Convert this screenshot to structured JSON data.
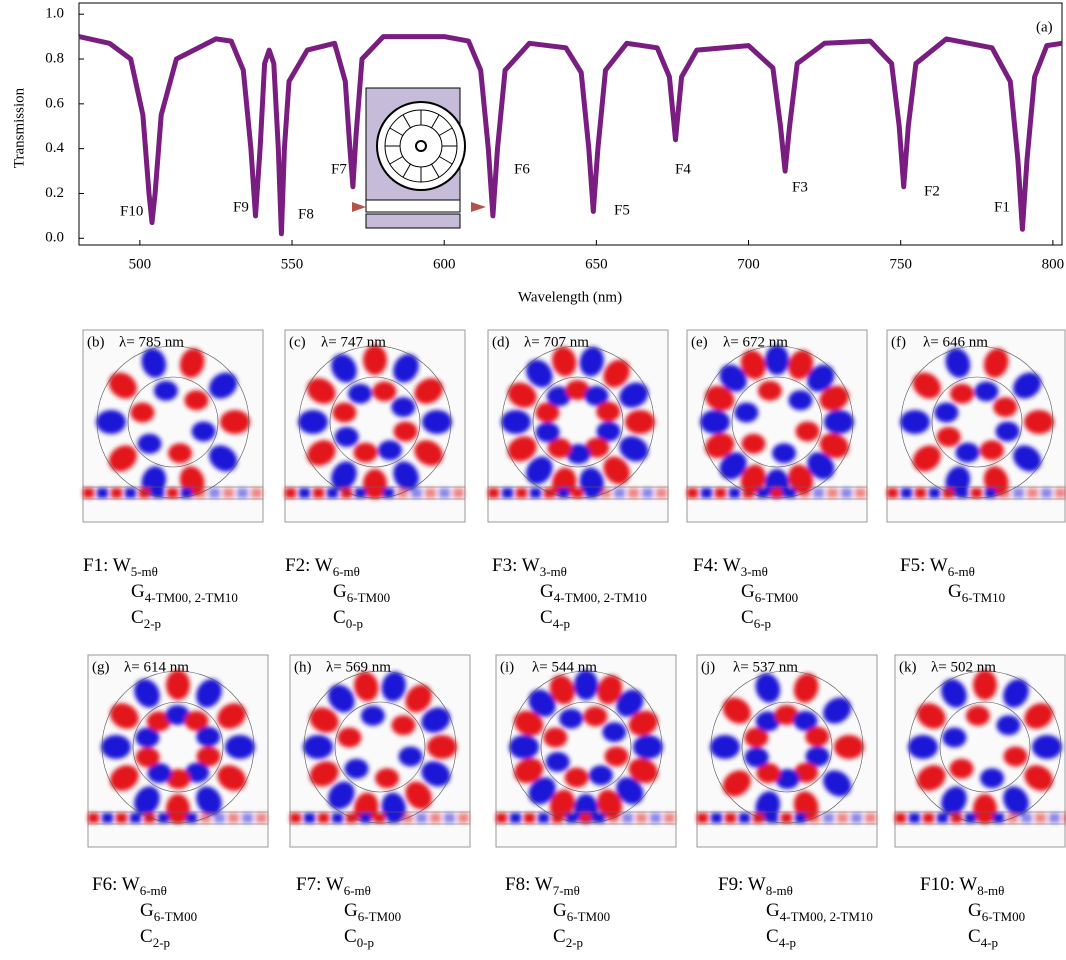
{
  "chart_data": {
    "type": "line",
    "x_label": "Wavelength (nm)",
    "y_label": "Transmission",
    "xlim": [
      480,
      803
    ],
    "ylim": [
      -0.03,
      1.05
    ],
    "xticks": [
      500,
      550,
      600,
      650,
      700,
      750,
      800
    ],
    "yticks": [
      {
        "value": 0,
        "label": "0.0"
      },
      0.2,
      0.4,
      0.6,
      0.8,
      {
        "value": 1,
        "label": "1.0"
      }
    ],
    "x": [
      480,
      490,
      497,
      501,
      503,
      504,
      505,
      507,
      512,
      525,
      530,
      534,
      536.5,
      538,
      539.5,
      541,
      542.5,
      544,
      545.5,
      546.5,
      547.5,
      549,
      555,
      564,
      567.5,
      569,
      570,
      571,
      573,
      580,
      600,
      608,
      612,
      614.5,
      616,
      617.5,
      620,
      628,
      640,
      645,
      647.5,
      649,
      650.5,
      653,
      660,
      670,
      674,
      676,
      678,
      683,
      700,
      708,
      710.5,
      712,
      713.5,
      716,
      725,
      740,
      747,
      749.5,
      751,
      752.5,
      755,
      765,
      780,
      786,
      788.5,
      790,
      791.5,
      794,
      798,
      803
    ],
    "series": [
      {
        "color": "#7a1d80",
        "values": [
          0.9,
          0.87,
          0.8,
          0.55,
          0.2,
          0.07,
          0.2,
          0.55,
          0.8,
          0.89,
          0.88,
          0.75,
          0.4,
          0.1,
          0.4,
          0.78,
          0.84,
          0.78,
          0.4,
          0.02,
          0.4,
          0.7,
          0.84,
          0.87,
          0.7,
          0.4,
          0.23,
          0.45,
          0.8,
          0.9,
          0.9,
          0.88,
          0.75,
          0.4,
          0.1,
          0.4,
          0.75,
          0.87,
          0.85,
          0.74,
          0.4,
          0.12,
          0.4,
          0.75,
          0.87,
          0.85,
          0.72,
          0.44,
          0.72,
          0.84,
          0.86,
          0.76,
          0.5,
          0.3,
          0.5,
          0.78,
          0.87,
          0.88,
          0.78,
          0.5,
          0.23,
          0.5,
          0.78,
          0.89,
          0.85,
          0.7,
          0.35,
          0.04,
          0.35,
          0.72,
          0.86,
          0.87
        ]
      }
    ],
    "annotations": [
      "(a)",
      "F10",
      "F9",
      "F8",
      "F7",
      "F6",
      "F5",
      "F4",
      "F3",
      "F2",
      "F1"
    ]
  },
  "panels": [
    {
      "tag": "(b)",
      "wavelength": "λ= 785 nm"
    },
    {
      "tag": "(c)",
      "wavelength": "λ= 747 nm"
    },
    {
      "tag": "(d)",
      "wavelength": "λ= 707 nm"
    },
    {
      "tag": "(e)",
      "wavelength": "λ= 672 nm"
    },
    {
      "tag": "(f)",
      "wavelength": "λ= 646 nm"
    },
    {
      "tag": "(g)",
      "wavelength": "λ= 614 nm"
    },
    {
      "tag": "(h)",
      "wavelength": "λ= 569 nm"
    },
    {
      "tag": "(i)",
      "wavelength": "λ= 544 nm"
    },
    {
      "tag": "(j)",
      "wavelength": "λ= 537 nm"
    },
    {
      "tag": "(k)",
      "wavelength": "λ= 502 nm"
    }
  ],
  "modes": [
    {
      "label": "F1:",
      "w": [
        "W",
        "5-mθ"
      ],
      "g": [
        "G",
        "4-TM00, 2-TM10"
      ],
      "c": [
        "C",
        "2-p"
      ]
    },
    {
      "label": "F2:",
      "w": [
        "W",
        "6-mθ"
      ],
      "g": [
        "G",
        "6-TM00"
      ],
      "c": [
        "C",
        "0-p"
      ]
    },
    {
      "label": "F3:",
      "w": [
        "W",
        "3-mθ"
      ],
      "g": [
        "G",
        "4-TM00, 2-TM10"
      ],
      "c": [
        "C",
        "4-p"
      ]
    },
    {
      "label": "F4:",
      "w": [
        "W",
        "3-mθ"
      ],
      "g": [
        "G",
        "6-TM00"
      ],
      "c": [
        "C",
        "6-p"
      ]
    },
    {
      "label": "F5:",
      "w": [
        "W",
        "6-mθ"
      ],
      "g": [
        "G",
        "6-TM10"
      ]
    },
    {
      "label": "F6:",
      "w": [
        "W",
        "6-mθ"
      ],
      "g": [
        "G",
        "6-TM00"
      ],
      "c": [
        "C",
        "2-p"
      ]
    },
    {
      "label": "F7:",
      "w": [
        "W",
        "6-mθ"
      ],
      "g": [
        "G",
        "6-TM00"
      ],
      "c": [
        "C",
        "0-p"
      ]
    },
    {
      "label": "F8:",
      "w": [
        "W",
        "7-mθ"
      ],
      "g": [
        "G",
        "6-TM00"
      ],
      "c": [
        "C",
        "2-p"
      ]
    },
    {
      "label": "F9:",
      "w": [
        "W",
        "8-mθ"
      ],
      "g": [
        "G",
        "4-TM00, 2-TM10"
      ],
      "c": [
        "C",
        "4-p"
      ]
    },
    {
      "label": "F10:",
      "w": [
        "W",
        "8-mθ"
      ],
      "g": [
        "G",
        "6-TM00"
      ],
      "c": [
        "C",
        "4-p"
      ]
    }
  ]
}
